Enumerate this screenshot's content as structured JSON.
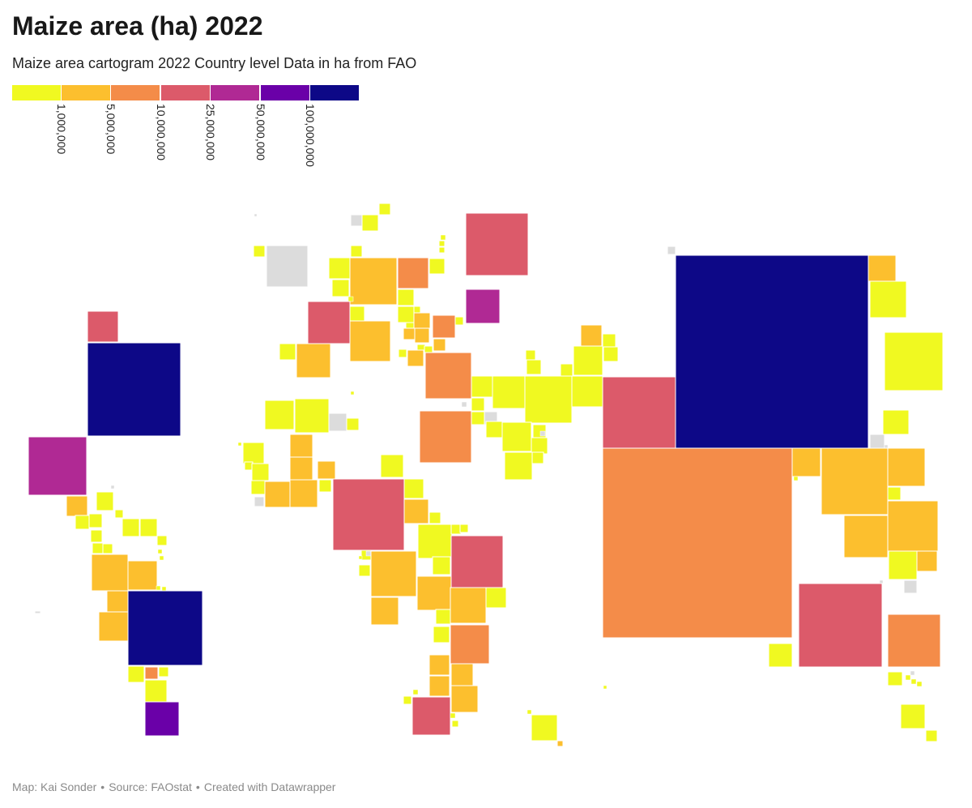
{
  "header": {
    "title": "Maize area (ha) 2022",
    "subtitle": "Maize area cartogram 2022 Country level Data in ha from FAO"
  },
  "legend": {
    "colors": [
      "#f0f921",
      "#fcbf2e",
      "#f48c49",
      "#dc5a6a",
      "#b02994",
      "#6a00a8",
      "#0d0887"
    ],
    "ticks": [
      "1,000,000",
      "5,000,000",
      "10,000,000",
      "25,000,000",
      "50,000,000",
      "100,000,000"
    ]
  },
  "colors": {
    "no_data": "#dcdcdc",
    "cell_border": "#ffffff"
  },
  "footer": {
    "map_credit": "Map: Kai Sonder",
    "source": "Source: FAOstat",
    "tool": "Created with Datawrapper",
    "separator": "•"
  }
}
